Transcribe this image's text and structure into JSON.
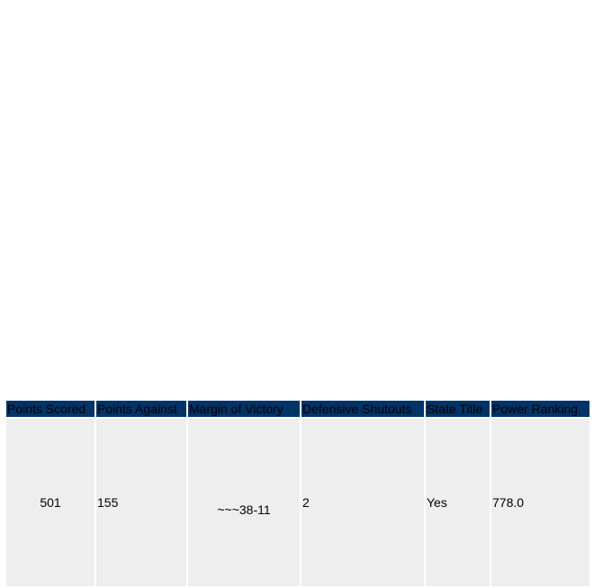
{
  "table": {
    "headers": [
      "Points Scored",
      "Points Against",
      "Margin of Victory",
      "Defensive Shutouts",
      "State Title",
      "Power Ranking"
    ],
    "row": [
      "501",
      "155",
      "~~~38-11",
      "2",
      "Yes",
      "778.0"
    ],
    "colors": {
      "header_bg": "#003366",
      "cell_bg": "#eeeeee"
    }
  }
}
